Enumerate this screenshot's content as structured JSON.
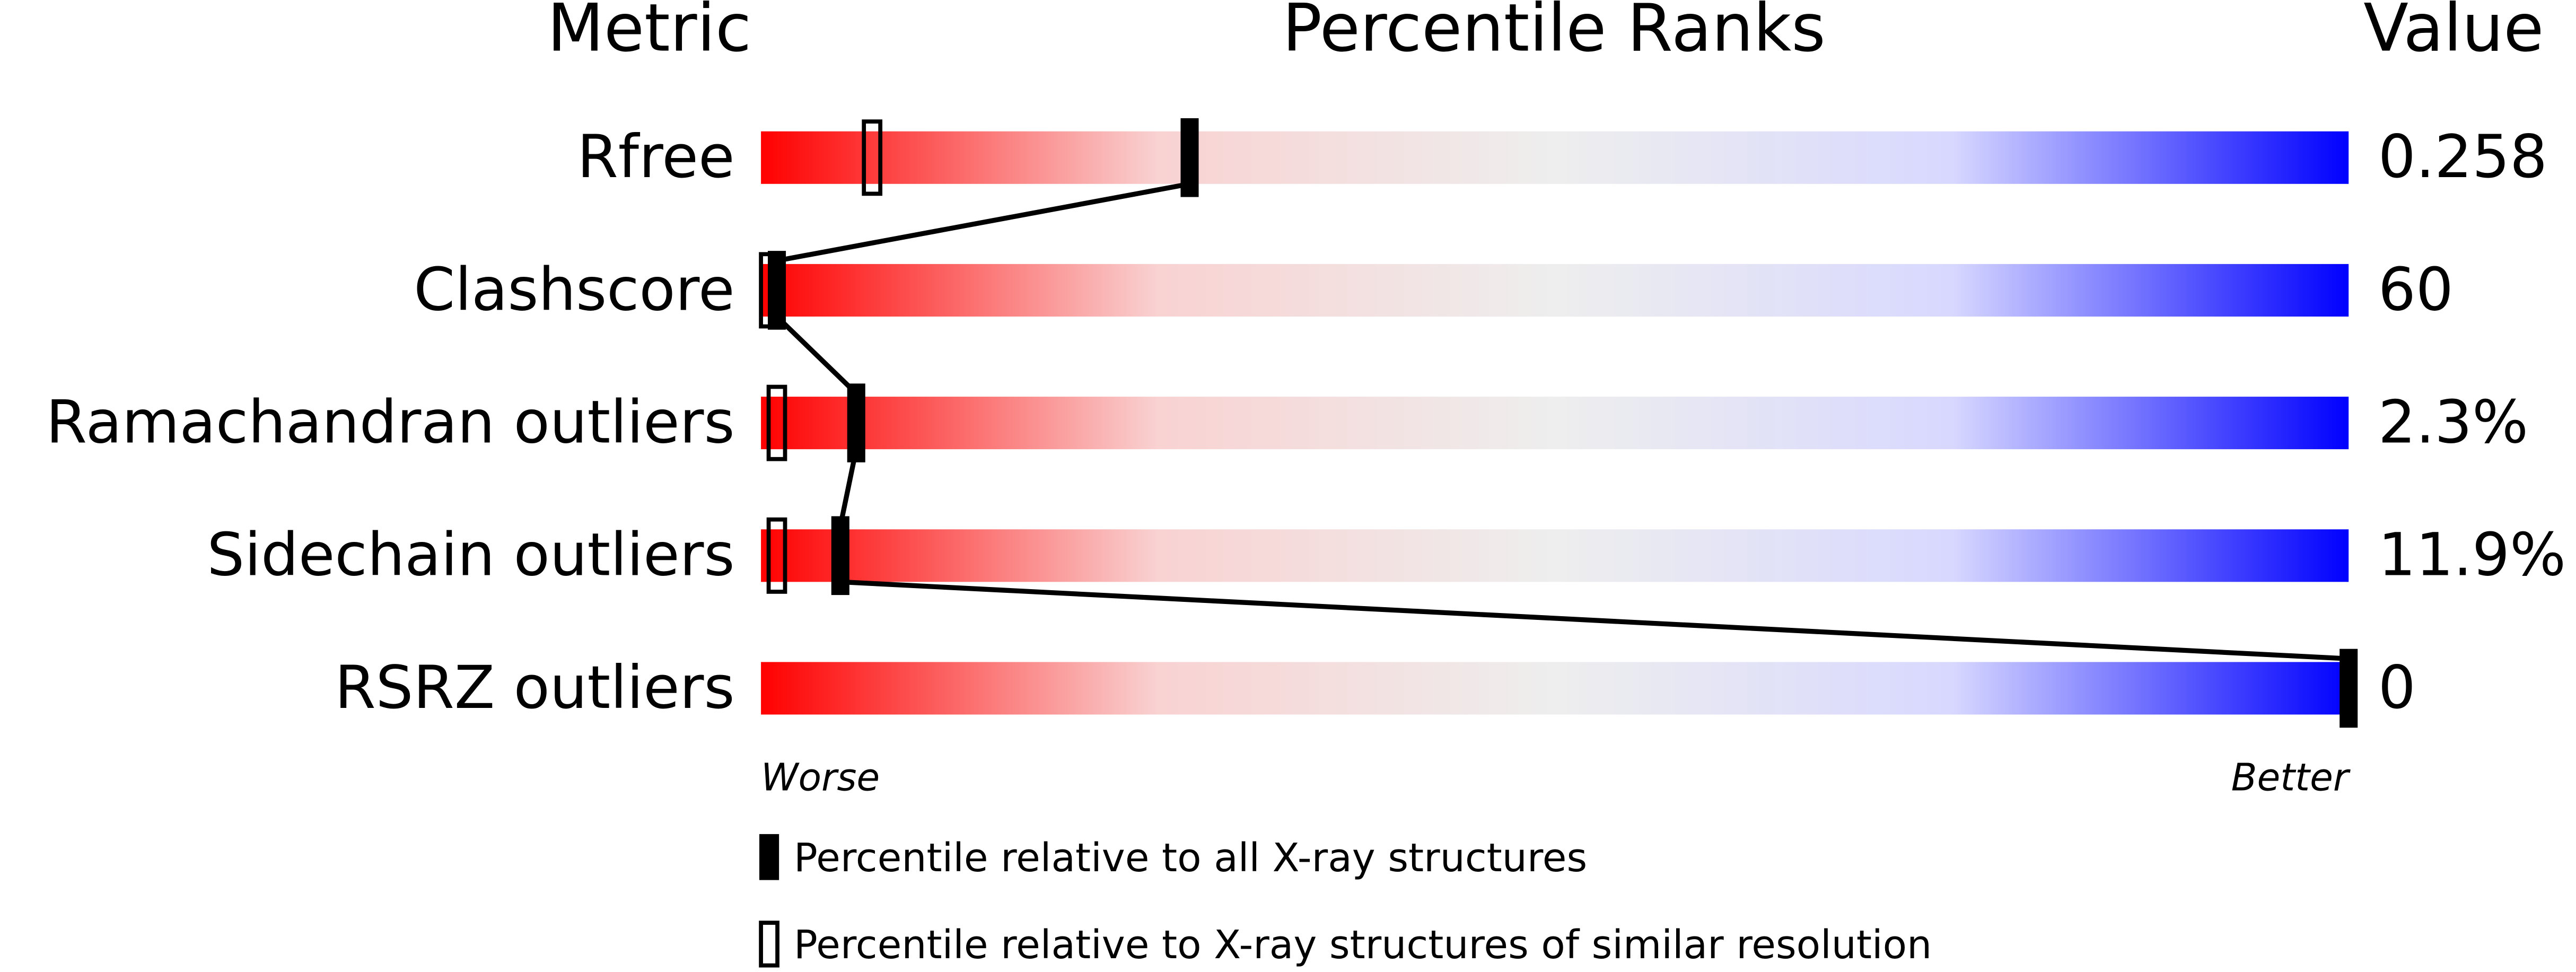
{
  "chart_data": {
    "type": "percentile",
    "title": "Percentile Ranks",
    "category_header": "Metric",
    "value_header": "Value",
    "categories": [
      "Rfree",
      "Clashscore",
      "Ramachandran outliers",
      "Sidechain outliers",
      "RSRZ outliers"
    ],
    "value_labels": [
      "0.258",
      "60",
      "2.3%",
      "11.9%",
      "0"
    ],
    "xlim": [
      0,
      100
    ],
    "low_label": "Worse",
    "high_label": "Better",
    "series": [
      {
        "name": "Percentile relative to all X-ray structures",
        "style": "filled",
        "color": "#000000",
        "values": [
          27,
          1,
          6,
          5,
          100
        ]
      },
      {
        "name": "Percentile relative to X-ray structures of similar resolution",
        "style": "hollow",
        "color": "#000000",
        "values": [
          7,
          0,
          1,
          1,
          null
        ]
      }
    ],
    "gradient": [
      "#ff0000",
      "#f9d2d2",
      "#eeeeee",
      "#d8d8ff",
      "#0000ff"
    ]
  }
}
